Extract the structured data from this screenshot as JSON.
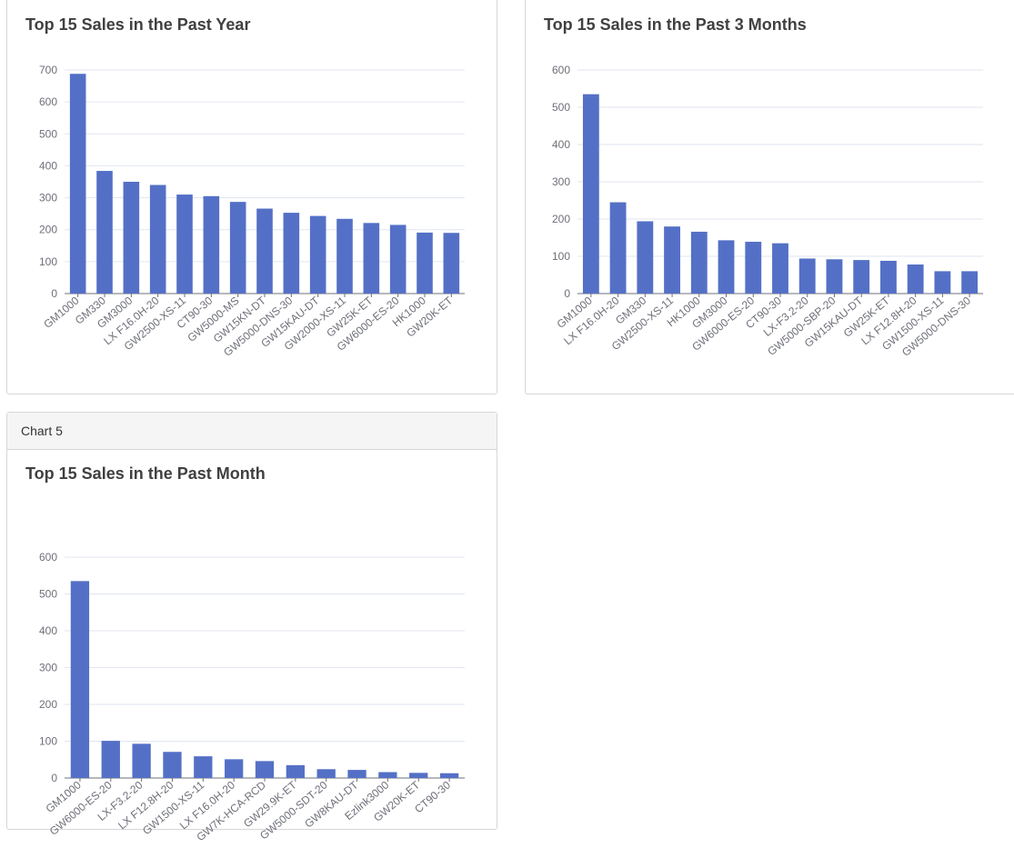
{
  "colors": {
    "bar": "#5470c6",
    "grid": "#e0e6f1",
    "axis": "#6e7079",
    "text": "#6e7079"
  },
  "panels": {
    "month": {
      "header": "Chart 5"
    }
  },
  "chart_data": [
    {
      "type": "bar",
      "title": "Top 15 Sales in the Past Year",
      "categories": [
        "GM1000",
        "GM330",
        "GM3000",
        "LX F16.0H-20",
        "GW2500-XS-11",
        "CT90-30",
        "GW5000-MS",
        "GW15KN-DT",
        "GW5000-DNS-30",
        "GW15KAU-DT",
        "GW2000-XS-11",
        "GW25K-ET",
        "GW6000-ES-20",
        "HK1000",
        "GW20K-ET"
      ],
      "values": [
        688,
        384,
        350,
        340,
        310,
        305,
        287,
        266,
        253,
        243,
        234,
        221,
        215,
        191,
        190
      ],
      "ylim": [
        0,
        700
      ],
      "yticks": [
        0,
        100,
        200,
        300,
        400,
        500,
        600,
        700
      ],
      "grid": true
    },
    {
      "type": "bar",
      "title": "Top 15 Sales in the Past 3 Months",
      "categories": [
        "GM1000",
        "LX F16.0H-20",
        "GM330",
        "GW2500-XS-11",
        "HK1000",
        "GM3000",
        "GW6000-ES-20",
        "CT90-30",
        "LX-F3.2-20",
        "GW5000-SBP-20",
        "GW15KAU-DT",
        "GW25K-ET",
        "LX F12.8H-20",
        "GW1500-XS-11",
        "GW5000-DNS-30"
      ],
      "values": [
        535,
        245,
        194,
        180,
        166,
        143,
        139,
        135,
        94,
        92,
        90,
        88,
        78,
        60,
        60
      ],
      "ylim": [
        0,
        600
      ],
      "yticks": [
        0,
        100,
        200,
        300,
        400,
        500,
        600
      ],
      "grid": true
    },
    {
      "type": "bar",
      "title": "Top 15 Sales in the Past Month",
      "categories": [
        "GM1000",
        "GW6000-ES-20",
        "LX-F3.2-20",
        "LX F12.8H-20",
        "GW1500-XS-11",
        "LX F16.0H-20",
        "GW7K-HCA-RCD",
        "GW29.9K-ET",
        "GW5000-SDT-20",
        "GW8KAU-DT",
        "Ezlink3000",
        "GW20K-ET",
        "CT90-30"
      ],
      "values": [
        535,
        101,
        93,
        71,
        59,
        51,
        46,
        35,
        24,
        22,
        16,
        14,
        13
      ],
      "ylim": [
        0,
        600
      ],
      "yticks": [
        0,
        100,
        200,
        300,
        400,
        500,
        600
      ],
      "grid": true
    }
  ]
}
